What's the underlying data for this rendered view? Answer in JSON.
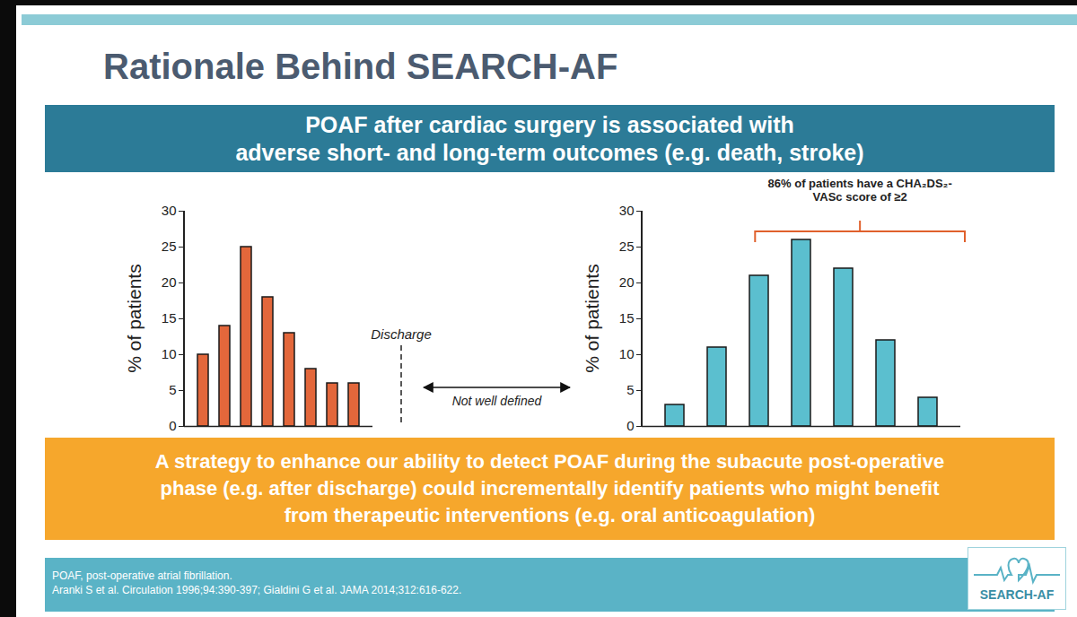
{
  "title": "Rationale Behind SEARCH-AF",
  "header_banner": {
    "lines": [
      "POAF after cardiac surgery is associated with",
      "adverse short- and long-term outcomes (e.g. death, stroke)"
    ]
  },
  "chart_data": [
    {
      "type": "bar",
      "categories": [
        null,
        null,
        null,
        null,
        null,
        null,
        null,
        null
      ],
      "values": [
        10,
        14,
        25,
        18,
        13,
        8,
        6,
        6
      ],
      "color": "#e3673b",
      "ylim": [
        0,
        30
      ],
      "yticks": [
        0,
        5,
        10,
        15,
        20,
        25,
        30
      ],
      "ylabel": "% of patients",
      "tick_labels": "y",
      "grid": false,
      "annotations": [
        "Discharge",
        "Not well defined"
      ]
    },
    {
      "type": "bar",
      "categories": [
        null,
        null,
        null,
        null,
        null,
        null,
        null
      ],
      "values": [
        3,
        11,
        21,
        26,
        22,
        12,
        4
      ],
      "color": "#5bbfcf",
      "ylim": [
        0,
        30
      ],
      "yticks": [
        0,
        5,
        10,
        15,
        20,
        25,
        30
      ],
      "ylabel": "% of patients",
      "tick_labels": "y",
      "grid": false,
      "annotations": [
        "86% of patients have a CHA₂DS₂-VASc score of ≥2"
      ]
    }
  ],
  "conclusion_banner": {
    "lines": [
      "A strategy to enhance our ability to detect POAF during the subacute post-operative",
      "phase (e.g. after discharge) could incrementally identify patients who might benefit",
      "from therapeutic interventions (e.g. oral anticoagulation)"
    ]
  },
  "footer": {
    "notes": [
      "POAF, post-operative atrial fibrillation.",
      "Aranki S et al. Circulation 1996;94:390-397; Gialdini G et al. JAMA 2014;312:616-622."
    ],
    "logo": "SEARCH-AF"
  }
}
